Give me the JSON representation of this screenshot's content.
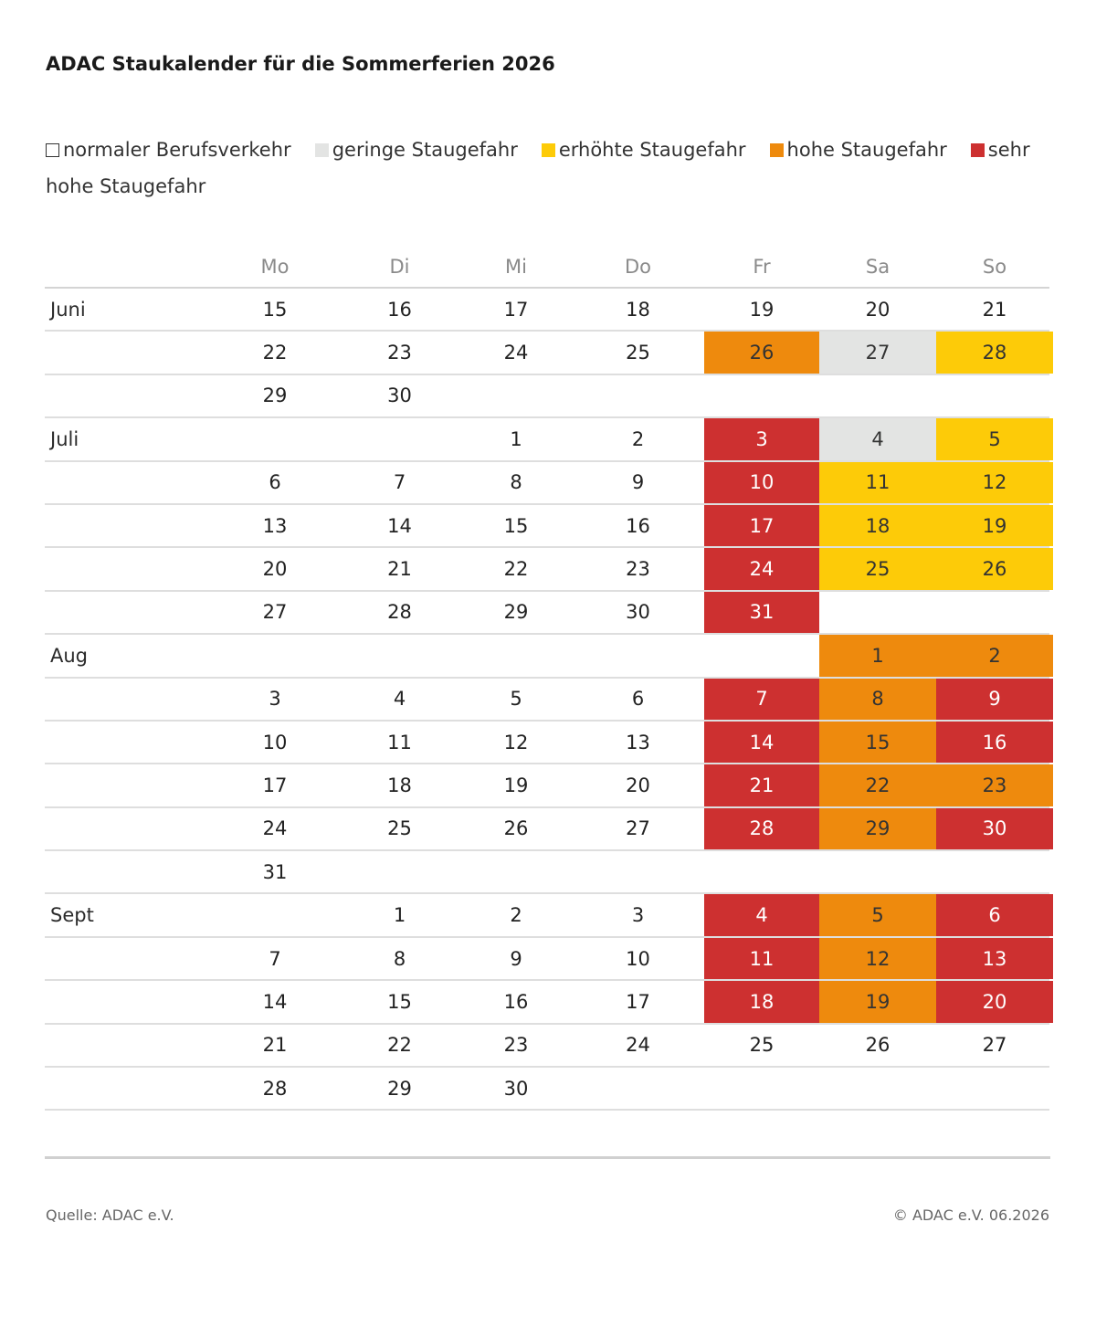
{
  "title": "ADAC Staukalender für die Sommerferien 2026",
  "legend": [
    {
      "label": "normaler Berufsverkehr",
      "level": 0
    },
    {
      "label": "geringe Staugefahr",
      "level": 1
    },
    {
      "label": "erhöhte Staugefahr",
      "level": 2
    },
    {
      "label": "hohe Staugefahr",
      "level": 3
    },
    {
      "label": "sehr hohe Staugefahr",
      "level": 4
    }
  ],
  "colors": {
    "0": {
      "bg": "#ffffff",
      "fg": "#222222"
    },
    "1": {
      "bg": "#e3e4e3",
      "fg": "#333333"
    },
    "2": {
      "bg": "#fdcb08",
      "fg": "#333333"
    },
    "3": {
      "bg": "#ee8a0d",
      "fg": "#333333"
    },
    "4": {
      "bg": "#cd3030",
      "fg": "#ffffff"
    }
  },
  "weekdays": [
    "Mo",
    "Di",
    "Mi",
    "Do",
    "Fr",
    "Sa",
    "So"
  ],
  "chart_data": {
    "type": "table",
    "rows": [
      {
        "month": "Juni",
        "days": [
          15,
          16,
          17,
          18,
          19,
          20,
          21
        ],
        "levels": [
          0,
          0,
          0,
          0,
          0,
          0,
          0
        ]
      },
      {
        "month": "",
        "days": [
          22,
          23,
          24,
          25,
          26,
          27,
          28
        ],
        "levels": [
          0,
          0,
          0,
          0,
          3,
          1,
          2
        ]
      },
      {
        "month": "",
        "days": [
          29,
          30,
          null,
          null,
          null,
          null,
          null
        ],
        "levels": [
          0,
          0,
          0,
          0,
          0,
          0,
          0
        ]
      },
      {
        "month": "Juli",
        "days": [
          null,
          null,
          1,
          2,
          3,
          4,
          5
        ],
        "levels": [
          0,
          0,
          0,
          0,
          4,
          1,
          2
        ]
      },
      {
        "month": "",
        "days": [
          6,
          7,
          8,
          9,
          10,
          11,
          12
        ],
        "levels": [
          0,
          0,
          0,
          0,
          4,
          2,
          2
        ]
      },
      {
        "month": "",
        "days": [
          13,
          14,
          15,
          16,
          17,
          18,
          19
        ],
        "levels": [
          0,
          0,
          0,
          0,
          4,
          2,
          2
        ]
      },
      {
        "month": "",
        "days": [
          20,
          21,
          22,
          23,
          24,
          25,
          26
        ],
        "levels": [
          0,
          0,
          0,
          0,
          4,
          2,
          2
        ]
      },
      {
        "month": "",
        "days": [
          27,
          28,
          29,
          30,
          31,
          null,
          null
        ],
        "levels": [
          0,
          0,
          0,
          0,
          4,
          0,
          0
        ]
      },
      {
        "month": "Aug",
        "days": [
          null,
          null,
          null,
          null,
          null,
          1,
          2
        ],
        "levels": [
          0,
          0,
          0,
          0,
          0,
          3,
          3
        ]
      },
      {
        "month": "",
        "days": [
          3,
          4,
          5,
          6,
          7,
          8,
          9
        ],
        "levels": [
          0,
          0,
          0,
          0,
          4,
          3,
          4
        ]
      },
      {
        "month": "",
        "days": [
          10,
          11,
          12,
          13,
          14,
          15,
          16
        ],
        "levels": [
          0,
          0,
          0,
          0,
          4,
          3,
          4
        ]
      },
      {
        "month": "",
        "days": [
          17,
          18,
          19,
          20,
          21,
          22,
          23
        ],
        "levels": [
          0,
          0,
          0,
          0,
          4,
          3,
          3
        ]
      },
      {
        "month": "",
        "days": [
          24,
          25,
          26,
          27,
          28,
          29,
          30
        ],
        "levels": [
          0,
          0,
          0,
          0,
          4,
          3,
          4
        ]
      },
      {
        "month": "",
        "days": [
          31,
          null,
          null,
          null,
          null,
          null,
          null
        ],
        "levels": [
          0,
          0,
          0,
          0,
          0,
          0,
          0
        ]
      },
      {
        "month": "Sept",
        "days": [
          null,
          1,
          2,
          3,
          4,
          5,
          6
        ],
        "levels": [
          0,
          0,
          0,
          0,
          4,
          3,
          4
        ]
      },
      {
        "month": "",
        "days": [
          7,
          8,
          9,
          10,
          11,
          12,
          13
        ],
        "levels": [
          0,
          0,
          0,
          0,
          4,
          3,
          4
        ]
      },
      {
        "month": "",
        "days": [
          14,
          15,
          16,
          17,
          18,
          19,
          20
        ],
        "levels": [
          0,
          0,
          0,
          0,
          4,
          3,
          4
        ]
      },
      {
        "month": "",
        "days": [
          21,
          22,
          23,
          24,
          25,
          26,
          27
        ],
        "levels": [
          0,
          0,
          0,
          0,
          0,
          0,
          0
        ]
      },
      {
        "month": "",
        "days": [
          28,
          29,
          30,
          null,
          null,
          null,
          null
        ],
        "levels": [
          0,
          0,
          0,
          0,
          0,
          0,
          0
        ]
      }
    ]
  },
  "footer": {
    "source": "Quelle: ADAC e.V.",
    "copyright": "© ADAC e.V. 06.2026"
  }
}
